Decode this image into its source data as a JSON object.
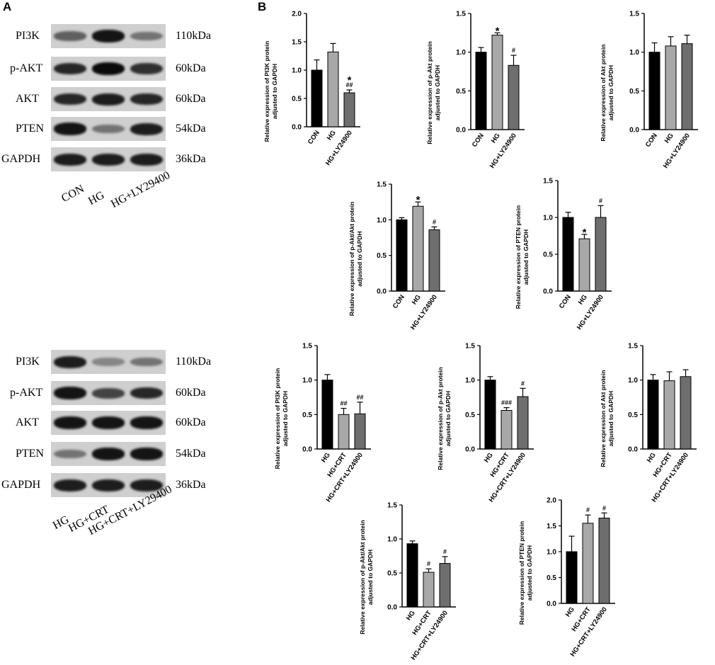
{
  "panels": {
    "a": "A",
    "b": "B"
  },
  "blots": [
    {
      "rows": [
        {
          "protein": "PI3K",
          "kda": "110kDa",
          "intensities": [
            0.55,
            0.95,
            0.45
          ]
        },
        {
          "protein": "p-AKT",
          "kda": "60kDa",
          "intensities": [
            0.85,
            1.0,
            0.8
          ]
        },
        {
          "protein": "AKT",
          "kda": "60kDa",
          "intensities": [
            0.85,
            0.9,
            0.85
          ]
        },
        {
          "protein": "PTEN",
          "kda": "54kDa",
          "intensities": [
            0.95,
            0.45,
            0.9
          ]
        },
        {
          "protein": "GAPDH",
          "kda": "36kDa",
          "intensities": [
            0.9,
            0.9,
            0.9
          ]
        }
      ],
      "lanes": [
        "CON",
        "HG",
        "HG+LY29400"
      ]
    },
    {
      "rows": [
        {
          "protein": "PI3K",
          "kda": "110kDa",
          "intensities": [
            0.9,
            0.35,
            0.45
          ]
        },
        {
          "protein": "p-AKT",
          "kda": "60kDa",
          "intensities": [
            0.95,
            0.7,
            0.85
          ]
        },
        {
          "protein": "AKT",
          "kda": "60kDa",
          "intensities": [
            0.95,
            0.95,
            0.95
          ]
        },
        {
          "protein": "PTEN",
          "kda": "54kDa",
          "intensities": [
            0.45,
            0.95,
            0.95
          ]
        },
        {
          "protein": "GAPDH",
          "kda": "36kDa",
          "intensities": [
            0.9,
            0.9,
            0.9
          ]
        }
      ],
      "lanes": [
        "HG",
        "HG+CRT",
        "HG+CRT+LY29400"
      ]
    }
  ],
  "chart_data": [
    {
      "type": "bar",
      "ylabel": [
        "Relative expression of  PI3K protein",
        "adjusted to GAPDH"
      ],
      "categories": [
        "CON",
        "HG",
        "HG+LY24900"
      ],
      "values": [
        1.0,
        1.32,
        0.6
      ],
      "errors": [
        0.18,
        0.15,
        0.05
      ],
      "annotations": [
        "",
        "",
        "*\n##"
      ],
      "ylim": [
        0,
        2.0
      ],
      "yticks": [
        "0.0",
        "0.5",
        "1.0",
        "1.5",
        "2.0"
      ],
      "colors": [
        "#000000",
        "#a8a8a8",
        "#6e6e6e"
      ]
    },
    {
      "type": "bar",
      "ylabel": [
        "Relative expression of  p-Akt protein",
        "adjusted to GAPDH"
      ],
      "categories": [
        "CON",
        "HG",
        "HG+LY24900"
      ],
      "values": [
        1.0,
        1.22,
        0.83
      ],
      "errors": [
        0.06,
        0.03,
        0.13
      ],
      "annotations": [
        "",
        "*",
        "#"
      ],
      "ylim": [
        0,
        1.5
      ],
      "yticks": [
        "0.0",
        "0.5",
        "1.0",
        "1.5"
      ],
      "colors": [
        "#000000",
        "#a8a8a8",
        "#6e6e6e"
      ]
    },
    {
      "type": "bar",
      "ylabel": [
        "Relative expression of  Akt protein",
        "adjusted to GAPDH"
      ],
      "categories": [
        "CON",
        "HG",
        "HG+LY24900"
      ],
      "values": [
        1.0,
        1.08,
        1.11
      ],
      "errors": [
        0.12,
        0.12,
        0.11
      ],
      "annotations": [
        "",
        "",
        ""
      ],
      "ylim": [
        0,
        1.5
      ],
      "yticks": [
        "0.0",
        "0.5",
        "1.0",
        "1.5"
      ],
      "colors": [
        "#000000",
        "#a8a8a8",
        "#6e6e6e"
      ]
    },
    {
      "type": "bar",
      "ylabel": [
        "Relative expression of  p-Akt/Akt protein",
        "adjusted to GAPDH"
      ],
      "categories": [
        "CON",
        "HG",
        "HG+LY24900"
      ],
      "values": [
        1.0,
        1.19,
        0.86
      ],
      "errors": [
        0.03,
        0.06,
        0.04
      ],
      "annotations": [
        "",
        "*",
        "#"
      ],
      "ylim": [
        0,
        1.5
      ],
      "yticks": [
        "0.0",
        "0.5",
        "1.0",
        "1.5"
      ],
      "colors": [
        "#000000",
        "#a8a8a8",
        "#6e6e6e"
      ]
    },
    {
      "type": "bar",
      "ylabel": [
        "Relative expression of  PTEN protein",
        "adjusted to GAPDH"
      ],
      "categories": [
        "CON",
        "HG",
        "HG+LY24900"
      ],
      "values": [
        1.0,
        0.71,
        1.0
      ],
      "errors": [
        0.07,
        0.06,
        0.16
      ],
      "annotations": [
        "",
        "*",
        "#"
      ],
      "ylim": [
        0,
        1.5
      ],
      "yticks": [
        "0.0",
        "0.5",
        "1.0",
        "1.5"
      ],
      "colors": [
        "#000000",
        "#a8a8a8",
        "#6e6e6e"
      ]
    },
    {
      "type": "bar",
      "ylabel": [
        "Relative expression of  PI3K protein",
        "adjusted to GAPDH"
      ],
      "categories": [
        "HG",
        "HG+CRT",
        "HG+CRT+LY24900"
      ],
      "values": [
        1.0,
        0.5,
        0.51
      ],
      "errors": [
        0.08,
        0.09,
        0.17
      ],
      "annotations": [
        "",
        "##",
        "##"
      ],
      "ylim": [
        0,
        1.5
      ],
      "yticks": [
        "0.0",
        "0.5",
        "1.0",
        "1.5"
      ],
      "colors": [
        "#000000",
        "#a8a8a8",
        "#6e6e6e"
      ]
    },
    {
      "type": "bar",
      "ylabel": [
        "Relative expression of  p-Akt protein",
        "adjusted to GAPDH"
      ],
      "categories": [
        "HG",
        "HG+CRT",
        "HG+CRT+LY24900"
      ],
      "values": [
        1.0,
        0.56,
        0.76
      ],
      "errors": [
        0.05,
        0.04,
        0.12
      ],
      "annotations": [
        "",
        "###",
        "#"
      ],
      "ylim": [
        0,
        1.5
      ],
      "yticks": [
        "0.0",
        "0.5",
        "1.0",
        "1.5"
      ],
      "colors": [
        "#000000",
        "#a8a8a8",
        "#6e6e6e"
      ]
    },
    {
      "type": "bar",
      "ylabel": [
        "Relative expression of  Akt protein",
        "adjusted to GAPDH"
      ],
      "categories": [
        "HG",
        "HG+CRT",
        "HG+CRT+LY24900"
      ],
      "values": [
        1.0,
        0.99,
        1.05
      ],
      "errors": [
        0.08,
        0.13,
        0.1
      ],
      "annotations": [
        "",
        "",
        ""
      ],
      "ylim": [
        0,
        1.5
      ],
      "yticks": [
        "0.0",
        "0.5",
        "1.0",
        "1.5"
      ],
      "colors": [
        "#000000",
        "#a8a8a8",
        "#6e6e6e"
      ]
    },
    {
      "type": "bar",
      "ylabel": [
        "Relative expression of  p-Akt/Akt protein",
        "adjusted to GAPDH"
      ],
      "categories": [
        "HG",
        "HG+CRT",
        "HG+CRT+LY24900"
      ],
      "values": [
        0.93,
        0.51,
        0.64
      ],
      "errors": [
        0.04,
        0.05,
        0.1
      ],
      "annotations": [
        "",
        "#",
        "#"
      ],
      "ylim": [
        0,
        1.5
      ],
      "yticks": [
        "0.0",
        "0.5",
        "1.0",
        "1.5"
      ],
      "colors": [
        "#000000",
        "#a8a8a8",
        "#6e6e6e"
      ]
    },
    {
      "type": "bar",
      "ylabel": [
        "Relative expression of  PTEN protein",
        "adjusted to GAPDH"
      ],
      "categories": [
        "HG",
        "HG+CRT",
        "HG+CRT+LY24900"
      ],
      "values": [
        1.0,
        1.55,
        1.65
      ],
      "errors": [
        0.3,
        0.16,
        0.1
      ],
      "annotations": [
        "",
        "#",
        "#"
      ],
      "ylim": [
        0,
        2.0
      ],
      "yticks": [
        "0.0",
        "0.5",
        "1.0",
        "1.5",
        "2.0"
      ],
      "colors": [
        "#000000",
        "#a8a8a8",
        "#6e6e6e"
      ]
    }
  ]
}
